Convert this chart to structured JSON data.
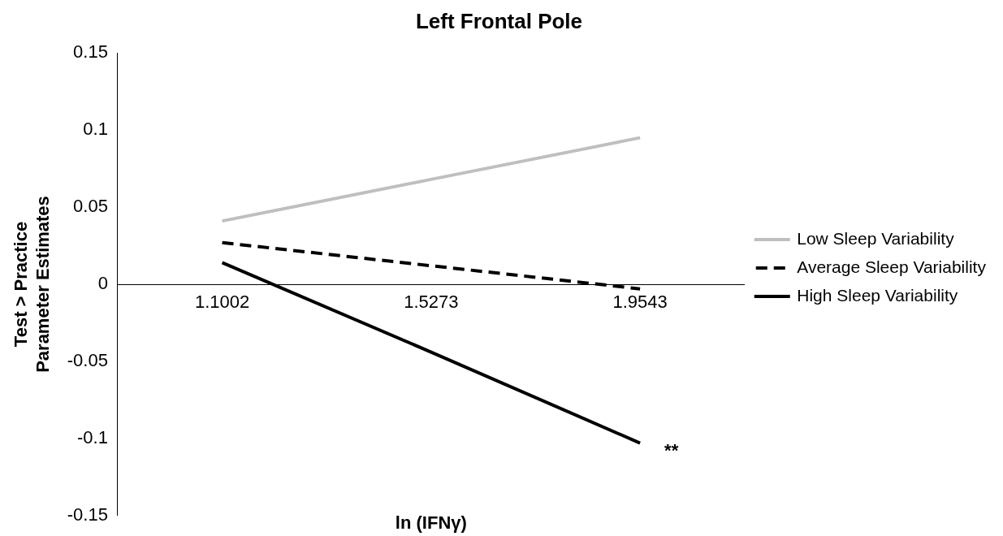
{
  "chart_data": {
    "type": "line",
    "title": "Left Frontal Pole",
    "xlabel": "ln (IFNγ)",
    "ylabel": "Test > Practice\nParameter Estimates",
    "categories": [
      "1.1002",
      "1.5273",
      "1.9543"
    ],
    "series": [
      {
        "name": "Low Sleep Variability",
        "color": "#bfbfbf",
        "values": [
          0.041,
          0.068,
          0.095
        ],
        "line_style": "solid"
      },
      {
        "name": "Average Sleep Variability",
        "color": "#000000",
        "values": [
          0.027,
          0.012,
          -0.003
        ],
        "line_style": "dashed"
      },
      {
        "name": "High Sleep Variability",
        "color": "#000000",
        "values": [
          0.014,
          -0.044,
          -0.103
        ],
        "line_style": "solid"
      }
    ],
    "ylim": [
      -0.15,
      0.15
    ],
    "yticks": [
      -0.15,
      -0.1,
      -0.05,
      0,
      0.05,
      0.1,
      0.15
    ],
    "grid": false,
    "legend": "right",
    "marker": "none",
    "annotations": [
      {
        "text": "**",
        "x": "1.9543",
        "y": -0.103
      }
    ]
  }
}
